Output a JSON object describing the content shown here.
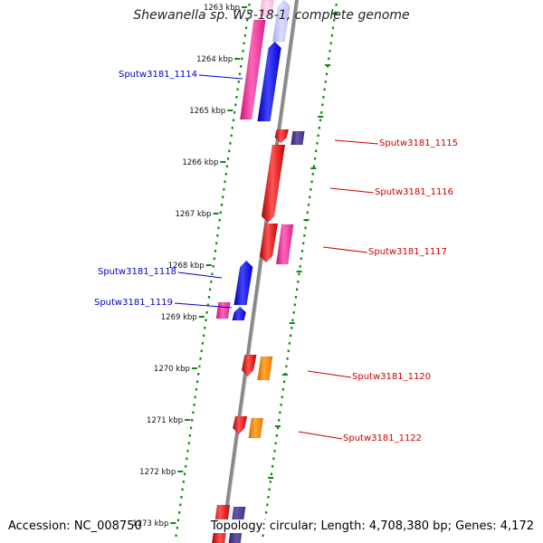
{
  "title": "Shewanella sp. W3-18-1, complete genome",
  "accession_text": "Accession: NC_008750",
  "topology_text": "Topology: circular; Length: 4,708,380 bp; Genes: 4,172",
  "kbp_ticks": [
    "1263 kbp",
    "1264 kbp",
    "1265 kbp",
    "1266 kbp",
    "1267 kbp",
    "1268 kbp",
    "1269 kbp",
    "1270 kbp",
    "1271 kbp",
    "1272 kbp",
    "1273 kbp"
  ],
  "gene_labels": [
    {
      "text": "Sputw3181_1114",
      "color": "#0000cc"
    },
    {
      "text": "Sputw3181_1115",
      "color": "#cc0000"
    },
    {
      "text": "Sputw3181_1116",
      "color": "#cc0000"
    },
    {
      "text": "Sputw3181_1117",
      "color": "#cc0000"
    },
    {
      "text": "Sputw3181_1118",
      "color": "#0000cc"
    },
    {
      "text": "Sputw3181_1119",
      "color": "#0000cc"
    },
    {
      "text": "Sputw3181_1120",
      "color": "#cc0000"
    },
    {
      "text": "Sputw3181_1122",
      "color": "#cc0000"
    }
  ],
  "colors": {
    "forward_cds": "#ff0000",
    "reverse_cds": "#0000ff",
    "forward_feature": "#ff8c00",
    "reverse_feature": "#ff3399",
    "dark_feature": "#443377",
    "backbone": "#888888",
    "ruler": "#118811"
  }
}
